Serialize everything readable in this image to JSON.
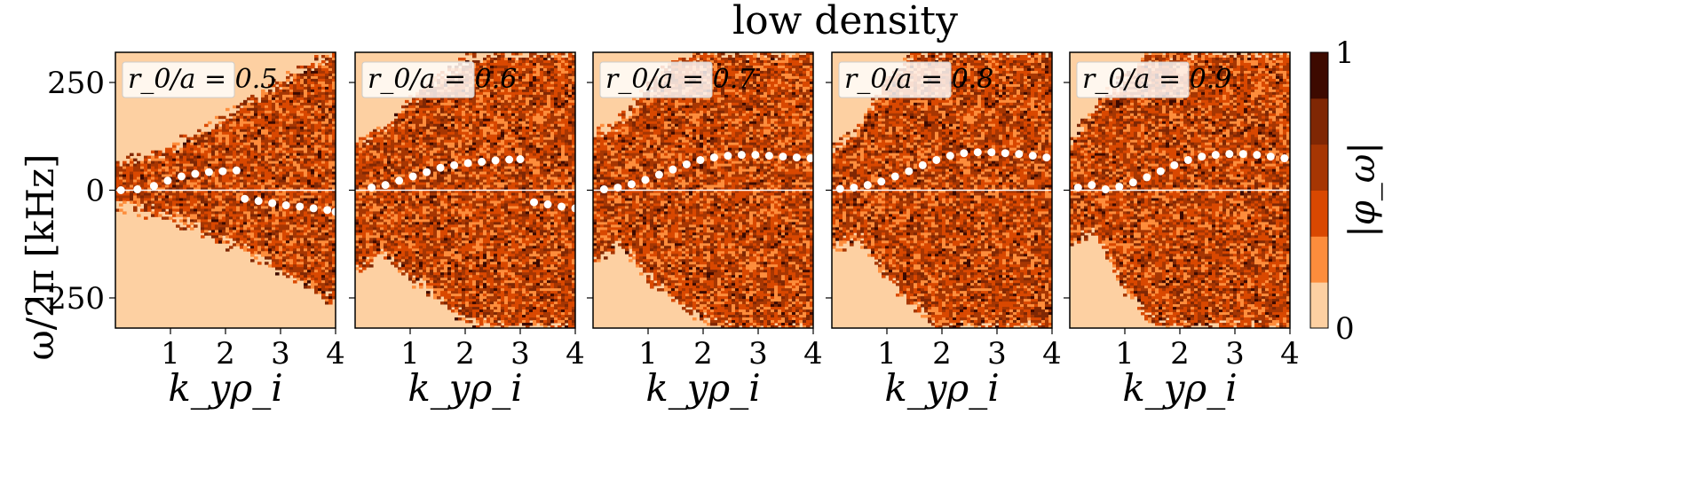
{
  "title": "low density",
  "y_axis_label": "ω/2π [kHz]",
  "x_axis_label": "k_yρ_i",
  "colorbar": {
    "label": "|φ_ω|",
    "min_label": "0",
    "max_label": "1"
  },
  "colors": {
    "levels": [
      "#fdd0a2",
      "#fd8d3c",
      "#d94801",
      "#a63603",
      "#7f2704",
      "#3d0a00"
    ],
    "marker": "#ffffff",
    "zero_line": "#ffffff"
  },
  "chart_data": [
    {
      "type": "heatmap",
      "annotation": "r_0/a = 0.5",
      "xlim": [
        0,
        4
      ],
      "ylim": [
        -320,
        320
      ],
      "x_ticks": [
        "1",
        "2",
        "3",
        "4"
      ],
      "y_ticks": [
        "250",
        "0",
        "−250"
      ],
      "y_tick_values": [
        250,
        0,
        -250
      ],
      "boundary": {
        "k": [
          0,
          0.5,
          1,
          1.5,
          2,
          2.5,
          3,
          3.5,
          4
        ],
        "upper": [
          70,
          80,
          95,
          130,
          170,
          210,
          250,
          290,
          320
        ],
        "lower": [
          -30,
          -45,
          -60,
          -90,
          -120,
          -150,
          -190,
          -220,
          -260
        ]
      },
      "markers": {
        "x": [
          0.1,
          0.4,
          0.7,
          0.95,
          1.2,
          1.45,
          1.7,
          1.95,
          2.2,
          2.35,
          2.6,
          2.85,
          3.1,
          3.35,
          3.6,
          3.85,
          4.0
        ],
        "y": [
          0,
          2,
          10,
          22,
          32,
          38,
          42,
          44,
          46,
          -20,
          -25,
          -30,
          -35,
          -38,
          -42,
          -46,
          -50
        ]
      }
    },
    {
      "type": "heatmap",
      "annotation": "r_0/a = 0.6",
      "xlim": [
        0,
        4
      ],
      "ylim": [
        -320,
        320
      ],
      "x_ticks": [
        "1",
        "2",
        "3",
        "4"
      ],
      "y_ticks": [
        "",
        "",
        ""
      ],
      "y_tick_values": [
        250,
        0,
        -250
      ],
      "boundary": {
        "k": [
          0,
          0.5,
          1,
          1.5,
          2,
          2.5,
          3,
          3.5,
          4
        ],
        "upper": [
          110,
          140,
          210,
          260,
          300,
          320,
          320,
          320,
          320
        ],
        "lower": [
          -180,
          -150,
          -200,
          -250,
          -300,
          -320,
          -320,
          -320,
          -320
        ]
      },
      "markers": {
        "x": [
          0.3,
          0.55,
          0.8,
          1.05,
          1.3,
          1.55,
          1.8,
          2.05,
          2.3,
          2.55,
          2.8,
          3.0,
          3.25,
          3.5,
          3.75,
          4.0
        ],
        "y": [
          6,
          12,
          22,
          32,
          42,
          52,
          58,
          63,
          66,
          69,
          71,
          72,
          -28,
          -33,
          -38,
          -42
        ]
      }
    },
    {
      "type": "heatmap",
      "annotation": "r_0/a = 0.7",
      "xlim": [
        0,
        4
      ],
      "ylim": [
        -320,
        320
      ],
      "x_ticks": [
        "1",
        "2",
        "3",
        "4"
      ],
      "y_ticks": [
        "",
        "",
        ""
      ],
      "y_tick_values": [
        250,
        0,
        -250
      ],
      "boundary": {
        "k": [
          0,
          0.5,
          1,
          1.5,
          2,
          2.5,
          3,
          3.5,
          4
        ],
        "upper": [
          130,
          160,
          240,
          300,
          320,
          320,
          320,
          320,
          320
        ],
        "lower": [
          -170,
          -120,
          -200,
          -260,
          -300,
          -320,
          -320,
          -320,
          -320
        ]
      },
      "markers": {
        "x": [
          0.2,
          0.45,
          0.7,
          0.95,
          1.2,
          1.45,
          1.7,
          1.95,
          2.2,
          2.45,
          2.7,
          2.95,
          3.2,
          3.45,
          3.7,
          3.95
        ],
        "y": [
          2,
          6,
          14,
          24,
          36,
          48,
          60,
          70,
          76,
          80,
          82,
          82,
          80,
          78,
          76,
          74
        ]
      }
    },
    {
      "type": "heatmap",
      "annotation": "r_0/a = 0.8",
      "xlim": [
        0,
        4
      ],
      "ylim": [
        -320,
        320
      ],
      "x_ticks": [
        "1",
        "2",
        "3",
        "4"
      ],
      "y_ticks": [
        "",
        "",
        ""
      ],
      "y_tick_values": [
        250,
        0,
        -250
      ],
      "boundary": {
        "k": [
          0,
          0.5,
          1,
          1.5,
          2,
          2.5,
          3,
          3.5,
          4
        ],
        "upper": [
          90,
          150,
          260,
          320,
          320,
          320,
          320,
          320,
          320
        ],
        "lower": [
          -140,
          -110,
          -200,
          -270,
          -320,
          -320,
          -320,
          -320,
          -320
        ]
      },
      "markers": {
        "x": [
          0.15,
          0.4,
          0.65,
          0.9,
          1.15,
          1.4,
          1.65,
          1.9,
          2.15,
          2.4,
          2.65,
          2.9,
          3.15,
          3.4,
          3.65,
          3.9
        ],
        "y": [
          3,
          6,
          12,
          20,
          32,
          44,
          58,
          70,
          80,
          86,
          88,
          88,
          86,
          84,
          80,
          76
        ]
      }
    },
    {
      "type": "heatmap",
      "annotation": "r_0/a = 0.9",
      "xlim": [
        0,
        4
      ],
      "ylim": [
        -320,
        320
      ],
      "x_ticks": [
        "1",
        "2",
        "3",
        "4"
      ],
      "y_ticks": [
        "",
        "",
        ""
      ],
      "y_tick_values": [
        250,
        0,
        -250
      ],
      "boundary": {
        "k": [
          0,
          0.5,
          1,
          1.5,
          2,
          2.5,
          3,
          3.5,
          4
        ],
        "upper": [
          110,
          200,
          260,
          320,
          320,
          320,
          320,
          320,
          320
        ],
        "lower": [
          -120,
          -100,
          -230,
          -300,
          -320,
          -320,
          -320,
          -320,
          -320
        ]
      },
      "markers": {
        "x": [
          0.15,
          0.4,
          0.65,
          0.9,
          1.15,
          1.4,
          1.65,
          1.9,
          2.15,
          2.4,
          2.65,
          2.9,
          3.15,
          3.4,
          3.65,
          3.9
        ],
        "y": [
          6,
          12,
          2,
          8,
          18,
          30,
          44,
          58,
          70,
          78,
          82,
          84,
          84,
          82,
          78,
          74
        ]
      }
    }
  ]
}
